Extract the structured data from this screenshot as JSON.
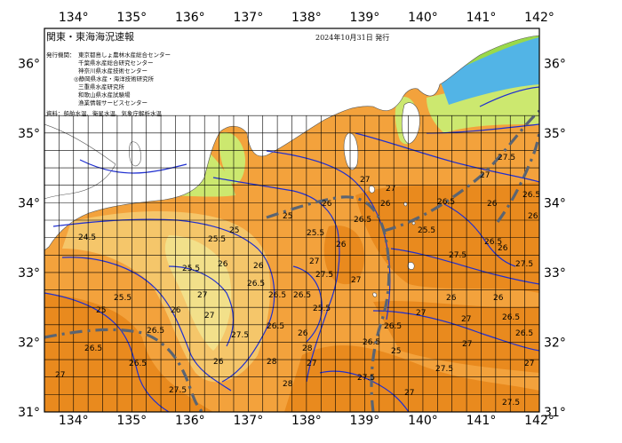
{
  "header": {
    "title": "関東・東海海況速報",
    "date": "2024年10月31日 発行"
  },
  "issuers": {
    "label": "発行機関：",
    "lines": [
      "東京都島しょ農林水産総合センター",
      "千葉県水産総合研究センター",
      "神奈川県水産技術センター",
      "◎静岡県水産・海洋技術研究所",
      "三重県水産研究所",
      "和歌山県水産試験場",
      "漁業情報サービスセンター"
    ]
  },
  "source_note": "資料：船舶水温、衛星水温、気象庁解析水温",
  "axes": {
    "lon_labels": [
      "134°",
      "135°",
      "136°",
      "137°",
      "138°",
      "139°",
      "140°",
      "141°",
      "142°"
    ],
    "lat_labels": [
      "36°",
      "35°",
      "34°",
      "33°",
      "32°",
      "31°"
    ]
  },
  "isotherm_labels": [
    {
      "text": "24.5"
    },
    {
      "text": "25"
    },
    {
      "text": "25"
    },
    {
      "text": "25.5"
    },
    {
      "text": "26"
    },
    {
      "text": "26"
    },
    {
      "text": "26.5"
    },
    {
      "text": "26"
    },
    {
      "text": "27"
    },
    {
      "text": "27"
    },
    {
      "text": "26.5"
    },
    {
      "text": "25.5"
    },
    {
      "text": "25.5"
    },
    {
      "text": "26"
    },
    {
      "text": "26"
    },
    {
      "text": "27"
    },
    {
      "text": "27.5"
    },
    {
      "text": "27"
    },
    {
      "text": "26.5"
    },
    {
      "text": "26.5"
    },
    {
      "text": "26.5"
    },
    {
      "text": "27"
    },
    {
      "text": "26"
    },
    {
      "text": "26.5"
    },
    {
      "text": "27"
    },
    {
      "text": "27.5"
    },
    {
      "text": "26.5"
    },
    {
      "text": "26"
    },
    {
      "text": "25.5"
    },
    {
      "text": "26.5"
    },
    {
      "text": "25"
    },
    {
      "text": "26.5"
    },
    {
      "text": "27"
    },
    {
      "text": "26"
    },
    {
      "text": "27"
    },
    {
      "text": "26"
    },
    {
      "text": "26.5"
    },
    {
      "text": "27"
    },
    {
      "text": "25.5"
    },
    {
      "text": "26.5"
    },
    {
      "text": "26"
    },
    {
      "text": "27.5"
    },
    {
      "text": "27.5"
    },
    {
      "text": "26"
    },
    {
      "text": "27.5"
    },
    {
      "text": "27"
    },
    {
      "text": "25"
    },
    {
      "text": "25.5"
    },
    {
      "text": "26.5"
    },
    {
      "text": "26.5"
    },
    {
      "text": "27"
    },
    {
      "text": "27.5"
    },
    {
      "text": "26"
    },
    {
      "text": "28"
    },
    {
      "text": "28"
    },
    {
      "text": "28"
    },
    {
      "text": "27"
    },
    {
      "text": "27.5"
    },
    {
      "text": "26.5"
    },
    {
      "text": "27.5"
    },
    {
      "text": "27"
    },
    {
      "text": "26"
    },
    {
      "text": "26.5"
    },
    {
      "text": "27"
    },
    {
      "text": "27.5"
    }
  ],
  "colors": {
    "sea_warm": "#e98a1e",
    "sea_mid": "#f3a23c",
    "sea_cool": "#f5c66a",
    "sea_cooler": "#f2e08a",
    "sea_green": "#cce86f",
    "land": "#ffffff",
    "grid": "#000000",
    "isotherm": "#1f2fd0",
    "current_axis": "#5a6472",
    "sea_cold_blue": "#52b4e6",
    "sea_lime": "#9ad94a",
    "frame": "#000000"
  }
}
